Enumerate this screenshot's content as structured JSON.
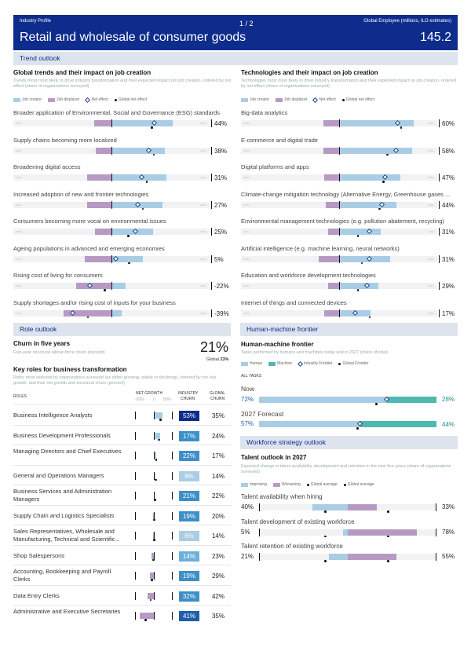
{
  "header": {
    "left": "Industry Profile",
    "page": "1 / 2",
    "right": "Global Employee (millions, ILO estimates)",
    "title": "Retail and wholesale of consumer goods",
    "value": "145.2"
  },
  "colors": {
    "creator": "#a9cde4",
    "displacer": "#b79ac4",
    "navy": "#0d2c8c",
    "teal": "#4fb8b0",
    "band": "#dde4ed"
  },
  "trend": {
    "band": "Trend outlook",
    "left": {
      "title": "Global trends and their impact on job creation",
      "subtitle": "Trends most most likely to drive industry transformation and their expected impact (on job creation, ordered by net effect (share of organizations surveyed)"
    },
    "right": {
      "title": "Technologies and their impact on job creation",
      "subtitle": "Technologies most most likely to drive industry transformation and their expected impact on job creation, ordered by net effect (share of organizations surveyed)"
    },
    "legend": {
      "creator": "Job creator",
      "displacer": "Job displacer",
      "net": "Net effect",
      "global": "Global net effect"
    },
    "ticks": {
      "left": "100%",
      "right": "100%"
    }
  },
  "trends_left": [
    {
      "label": "Broader application of Environmental, Social and Governance (ESG) standards",
      "pct": "44%",
      "net": 44,
      "cre": 62,
      "dis": -18,
      "gl": 40
    },
    {
      "label": "Supply chains becoming more localized",
      "pct": "38%",
      "net": 38,
      "cre": 54,
      "dis": -16,
      "gl": 42
    },
    {
      "label": "Broadening digital access",
      "pct": "31%",
      "net": 31,
      "cre": 56,
      "dis": -25,
      "gl": 35
    },
    {
      "label": "Increased adoption of new and frontier technologies",
      "pct": "27%",
      "net": 27,
      "cre": 52,
      "dis": -25,
      "gl": 31
    },
    {
      "label": "Consumers becoming more vocal on environmental issues",
      "pct": "25%",
      "net": 25,
      "cre": 42,
      "dis": -17,
      "gl": 16
    },
    {
      "label": "Ageing populations in advanced and emerging economies",
      "pct": "5%",
      "net": 5,
      "cre": 32,
      "dis": -27,
      "gl": 17
    },
    {
      "label": "Rising cost of living for consumers",
      "pct": "-22%",
      "net": -22,
      "cre": 14,
      "dis": -36,
      "gl": -8
    },
    {
      "label": "Supply shortages and/or rising cost of inputs for your business",
      "pct": "-39%",
      "net": -39,
      "cre": 10,
      "dis": -49,
      "gl": -25
    }
  ],
  "trends_right": [
    {
      "label": "Big-data analytics",
      "pct": "60%",
      "net": 60,
      "cre": 76,
      "dis": -16,
      "gl": 62
    },
    {
      "label": "E-commerce and digital trade",
      "pct": "58%",
      "net": 58,
      "cre": 74,
      "dis": -16,
      "gl": 48
    },
    {
      "label": "Digital platforms and apps",
      "pct": "47%",
      "net": 47,
      "cre": 62,
      "dis": -15,
      "gl": 44
    },
    {
      "label": "Climate-change mitigation technology (Alternative Energy, Greenhouse gases ...",
      "pct": "44%",
      "net": 44,
      "cre": 58,
      "dis": -14,
      "gl": 40
    },
    {
      "label": "Environmental management technologies (e.g. pollution abatement, recycling)",
      "pct": "31%",
      "net": 31,
      "cre": 42,
      "dis": -11,
      "gl": 18
    },
    {
      "label": "Artificial intelligence (e.g. machine learning, neural networks)",
      "pct": "31%",
      "net": 31,
      "cre": 52,
      "dis": -21,
      "gl": 22
    },
    {
      "label": "Education and workforce development technologies",
      "pct": "29%",
      "net": 29,
      "cre": 40,
      "dis": -11,
      "gl": 18
    },
    {
      "label": "Internet of things and connected devices",
      "pct": "17%",
      "net": 17,
      "cre": 32,
      "dis": -15,
      "gl": 30
    }
  ],
  "role": {
    "band": "Role outlook",
    "churn_title": "Churn in five years",
    "churn_sub": "Five-year structural labour-force churn (percent)",
    "churn_value": "21%",
    "churn_global": "Global",
    "churn_global_value": "23%",
    "key_title": "Key roles for business transformation",
    "key_sub": "Roles most selected by organizations surveyed (as either growing, stable or declining), ordered by net role growth, and their net growth and structural churn (percent)",
    "col_roles": "ROLES",
    "col_net": "NET GROWTH",
    "col_industry": "INDUSTRY",
    "col_industry2": "CHURN",
    "col_global": "GLOBAL",
    "col_global2": "CHURN",
    "axis": [
      "-50%",
      "0",
      "50%"
    ]
  },
  "roles": [
    {
      "label": "Business Intelligence Analysts",
      "churn": "53%",
      "gchurn": "35%",
      "net": 24,
      "shade": "#0d2c8c"
    },
    {
      "label": "Business Development Professionals",
      "churn": "17%",
      "gchurn": "24%",
      "net": 18,
      "shade": "#3d8fc7"
    },
    {
      "label": "Managing Directors and Chief Executives",
      "churn": "22%",
      "gchurn": "17%",
      "net": 6,
      "shade": "#3d8fc7"
    },
    {
      "label": "General and Operations Managers",
      "churn": "8%",
      "gchurn": "14%",
      "net": 4,
      "shade": "#a9cde4"
    },
    {
      "label": "Business Services and Administration Managers",
      "churn": "21%",
      "gchurn": "22%",
      "net": 1,
      "shade": "#3d8fc7"
    },
    {
      "label": "Supply Chain and Logistics Specialists",
      "churn": "19%",
      "gchurn": "20%",
      "net": -2,
      "shade": "#3d8fc7"
    },
    {
      "label": "Sales Representatives, Wholesale and Manufacturing, Technical and Scientific...",
      "churn": "6%",
      "gchurn": "14%",
      "net": -3,
      "shade": "#a9cde4"
    },
    {
      "label": "Shop Salespersons",
      "churn": "14%",
      "gchurn": "23%",
      "net": -6,
      "shade": "#6fb0db"
    },
    {
      "label": "Accounting, Bookkeeping and Payroll Clerks",
      "churn": "19%",
      "gchurn": "29%",
      "net": -12,
      "shade": "#3d8fc7"
    },
    {
      "label": "Data Entry Clerks",
      "churn": "32%",
      "gchurn": "42%",
      "net": -18,
      "shade": "#3d8fc7"
    },
    {
      "label": "Administrative and Executive Secretaries",
      "churn": "41%",
      "gchurn": "35%",
      "net": -40,
      "shade": "#1f5fa8"
    }
  ],
  "hmf": {
    "band": "Human-machine frontier",
    "title": "Human-machine frontier",
    "sub": "Tasks performed by humans and machines today and in 2027 (share of total)",
    "legend": {
      "human": "Human",
      "machine": "Machine",
      "industry": "Industry Frontier",
      "global": "Global Frontier"
    },
    "all": "ALL TASKS",
    "now": "Now",
    "now_pct": "72%",
    "now_m": "28%",
    "now_val": 72,
    "fc": "2027 Forecast",
    "fc_pct": "57%",
    "fc_m": "44%",
    "fc_val": 57
  },
  "ws": {
    "band": "Workforce strategy outlook",
    "title": "Talent outlook in 2027",
    "sub": "Expected change in talent availability, development and retention in the next five years (share of organizations surveyed)",
    "legend": {
      "imp": "Improving",
      "wor": "Worsening",
      "ga": "Global average",
      "gb": "Global average"
    },
    "rows": [
      {
        "label": "Talent availability when hiring",
        "l": "40%",
        "r": "33%",
        "imp": 40,
        "wor": 33
      },
      {
        "label": "Talent development of existing workforce",
        "l": "5%",
        "r": "78%",
        "imp": 5,
        "wor": 78
      },
      {
        "label": "Talent retention of existing workforce",
        "l": "21%",
        "r": "55%",
        "imp": 21,
        "wor": 55
      }
    ]
  }
}
